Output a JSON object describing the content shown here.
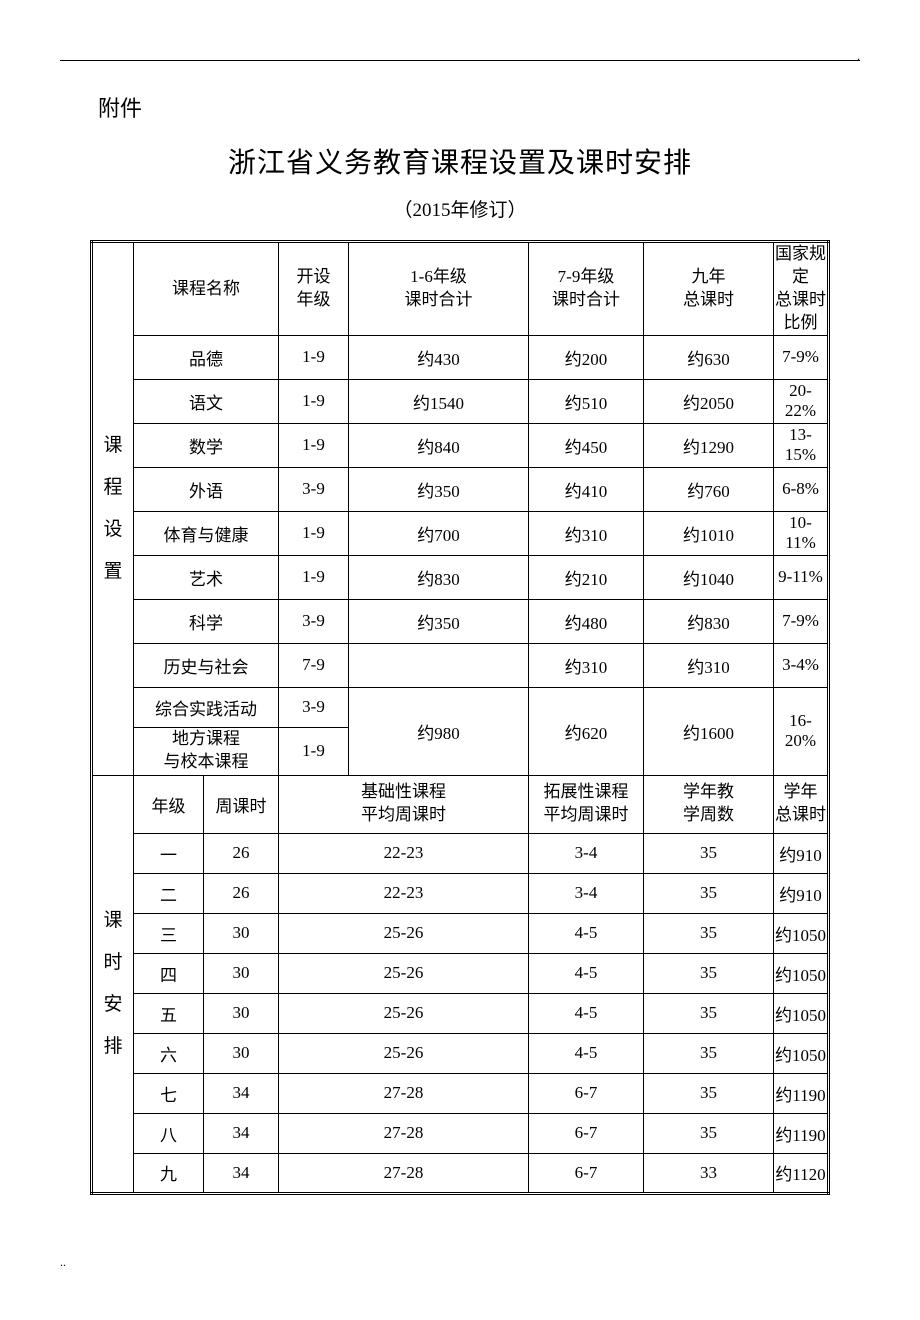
{
  "header_dot": ".",
  "prefix": "附件",
  "title": "浙江省义务教育课程设置及课时安排",
  "subtitle": "（2015年修订）",
  "section1_label": [
    "课",
    "程",
    "设",
    "置"
  ],
  "section2_label": [
    "课",
    "时",
    "安",
    "排"
  ],
  "t1_headers": {
    "name": "课程名称",
    "grades": "开设\n年级",
    "h16": "1-6年级\n课时合计",
    "h79": "7-9年级\n课时合计",
    "total9": "九年\n总课时",
    "ratio": "国家规定\n总课时比例"
  },
  "t1_rows": [
    {
      "name": "品德",
      "grades": "1-9",
      "h16": "约430",
      "h79": "约200",
      "t9": "约630",
      "ratio": "7-9%"
    },
    {
      "name": "语文",
      "grades": "1-9",
      "h16": "约1540",
      "h79": "约510",
      "t9": "约2050",
      "ratio": "20-22%"
    },
    {
      "name": "数学",
      "grades": "1-9",
      "h16": "约840",
      "h79": "约450",
      "t9": "约1290",
      "ratio": "13-15%"
    },
    {
      "name": "外语",
      "grades": "3-9",
      "h16": "约350",
      "h79": "约410",
      "t9": "约760",
      "ratio": "6-8%"
    },
    {
      "name": "体育与健康",
      "grades": "1-9",
      "h16": "约700",
      "h79": "约310",
      "t9": "约1010",
      "ratio": "10-11%"
    },
    {
      "name": "艺术",
      "grades": "1-9",
      "h16": "约830",
      "h79": "约210",
      "t9": "约1040",
      "ratio": "9-11%"
    },
    {
      "name": "科学",
      "grades": "3-9",
      "h16": "约350",
      "h79": "约480",
      "t9": "约830",
      "ratio": "7-9%"
    },
    {
      "name": "历史与社会",
      "grades": "7-9",
      "h16": "",
      "h79": "约310",
      "t9": "约310",
      "ratio": "3-4%"
    }
  ],
  "t1_merge": {
    "nameA": "综合实践活动",
    "gradesA": "3-9",
    "nameB_l1": "地方课程",
    "nameB_l2": "与校本课程",
    "gradesB": "1-9",
    "h16": "约980",
    "h79": "约620",
    "t9": "约1600",
    "ratio": "16-20%"
  },
  "t2_headers": {
    "grade": "年级",
    "week": "周课时",
    "basic": "基础性课程\n平均周课时",
    "ext": "拓展性课程\n平均周课时",
    "weeks": "学年教\n学周数",
    "total": "学年\n总课时"
  },
  "t2_rows": [
    {
      "g": "一",
      "w": "26",
      "b": "22-23",
      "e": "3-4",
      "wk": "35",
      "t": "约910"
    },
    {
      "g": "二",
      "w": "26",
      "b": "22-23",
      "e": "3-4",
      "wk": "35",
      "t": "约910"
    },
    {
      "g": "三",
      "w": "30",
      "b": "25-26",
      "e": "4-5",
      "wk": "35",
      "t": "约1050"
    },
    {
      "g": "四",
      "w": "30",
      "b": "25-26",
      "e": "4-5",
      "wk": "35",
      "t": "约1050"
    },
    {
      "g": "五",
      "w": "30",
      "b": "25-26",
      "e": "4-5",
      "wk": "35",
      "t": "约1050"
    },
    {
      "g": "六",
      "w": "30",
      "b": "25-26",
      "e": "4-5",
      "wk": "35",
      "t": "约1050"
    },
    {
      "g": "七",
      "w": "34",
      "b": "27-28",
      "e": "6-7",
      "wk": "35",
      "t": "约1190"
    },
    {
      "g": "八",
      "w": "34",
      "b": "27-28",
      "e": "6-7",
      "wk": "35",
      "t": "约1190"
    },
    {
      "g": "九",
      "w": "34",
      "b": "27-28",
      "e": "6-7",
      "wk": "33",
      "t": "约1120"
    }
  ],
  "footer_dots": ".."
}
